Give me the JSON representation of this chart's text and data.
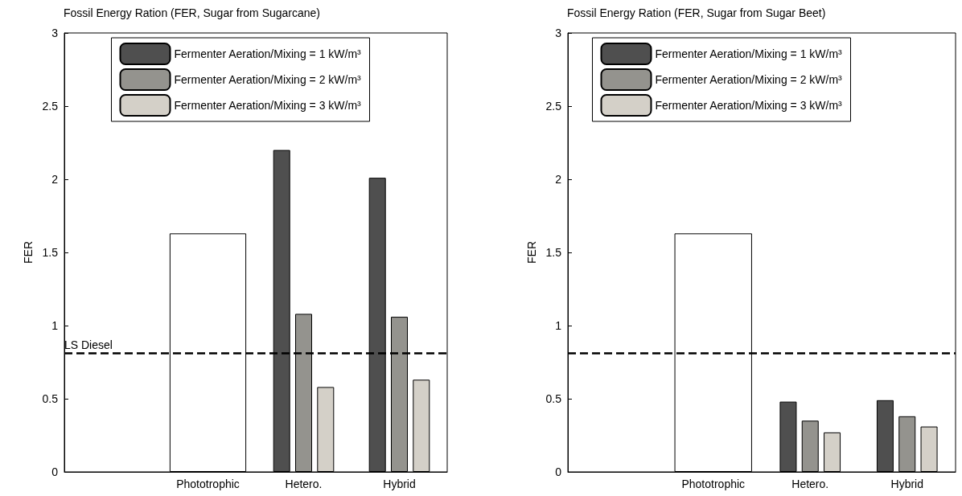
{
  "chart_data": [
    {
      "type": "bar",
      "title": "Fossil Energy Ration (FER, Sugar from Sugarcane)",
      "ylabel": "FER",
      "categories": [
        null,
        "Phototrophic",
        "Hetero.",
        "Hybrid"
      ],
      "ylim": [
        0,
        3
      ],
      "yticks": [
        0,
        0.5,
        1,
        1.5,
        2,
        2.5,
        3
      ],
      "grid": false,
      "legend": "top",
      "series": [
        {
          "color": "#ffffff",
          "values": [
            null,
            1.63,
            null,
            null
          ]
        },
        {
          "name": "Fermenter Aeration/Mixing = 1 kW/m³",
          "color": "#4f4f4f",
          "values": [
            null,
            null,
            2.2,
            2.01
          ]
        },
        {
          "name": "Fermenter Aeration/Mixing = 2 kW/m³",
          "color": "#94938e",
          "values": [
            null,
            null,
            1.08,
            1.06
          ]
        },
        {
          "name": "Fermenter Aeration/Mixing = 3 kW/m³",
          "color": "#d4d0c8",
          "values": [
            null,
            null,
            0.58,
            0.63
          ]
        }
      ],
      "ref_lines": [
        {
          "axis": "y",
          "value": 0.81,
          "label": "LS Diesel",
          "color": "#000000",
          "line_style": "dashed"
        }
      ]
    },
    {
      "type": "bar",
      "title": "Fossil Energy Ration (FER, Sugar from Sugar Beet)",
      "ylabel": "FER",
      "categories": [
        null,
        "Phototrophic",
        "Hetero.",
        "Hybrid"
      ],
      "ylim": [
        0,
        3
      ],
      "yticks": [
        0,
        0.5,
        1,
        1.5,
        2,
        2.5,
        3
      ],
      "grid": false,
      "legend": "top",
      "series": [
        {
          "color": "#ffffff",
          "values": [
            null,
            1.63,
            null,
            null
          ]
        },
        {
          "name": "Fermenter Aeration/Mixing = 1 kW/m³",
          "color": "#4f4f4f",
          "values": [
            null,
            null,
            0.48,
            0.49
          ]
        },
        {
          "name": "Fermenter Aeration/Mixing = 2 kW/m³",
          "color": "#94938e",
          "values": [
            null,
            null,
            0.35,
            0.38
          ]
        },
        {
          "name": "Fermenter Aeration/Mixing = 3 kW/m³",
          "color": "#d4d0c8",
          "values": [
            null,
            null,
            0.27,
            0.31
          ]
        }
      ],
      "ref_lines": [
        {
          "axis": "y",
          "value": 0.81,
          "label": null,
          "color": "#000000",
          "line_style": "dashed"
        }
      ]
    }
  ]
}
